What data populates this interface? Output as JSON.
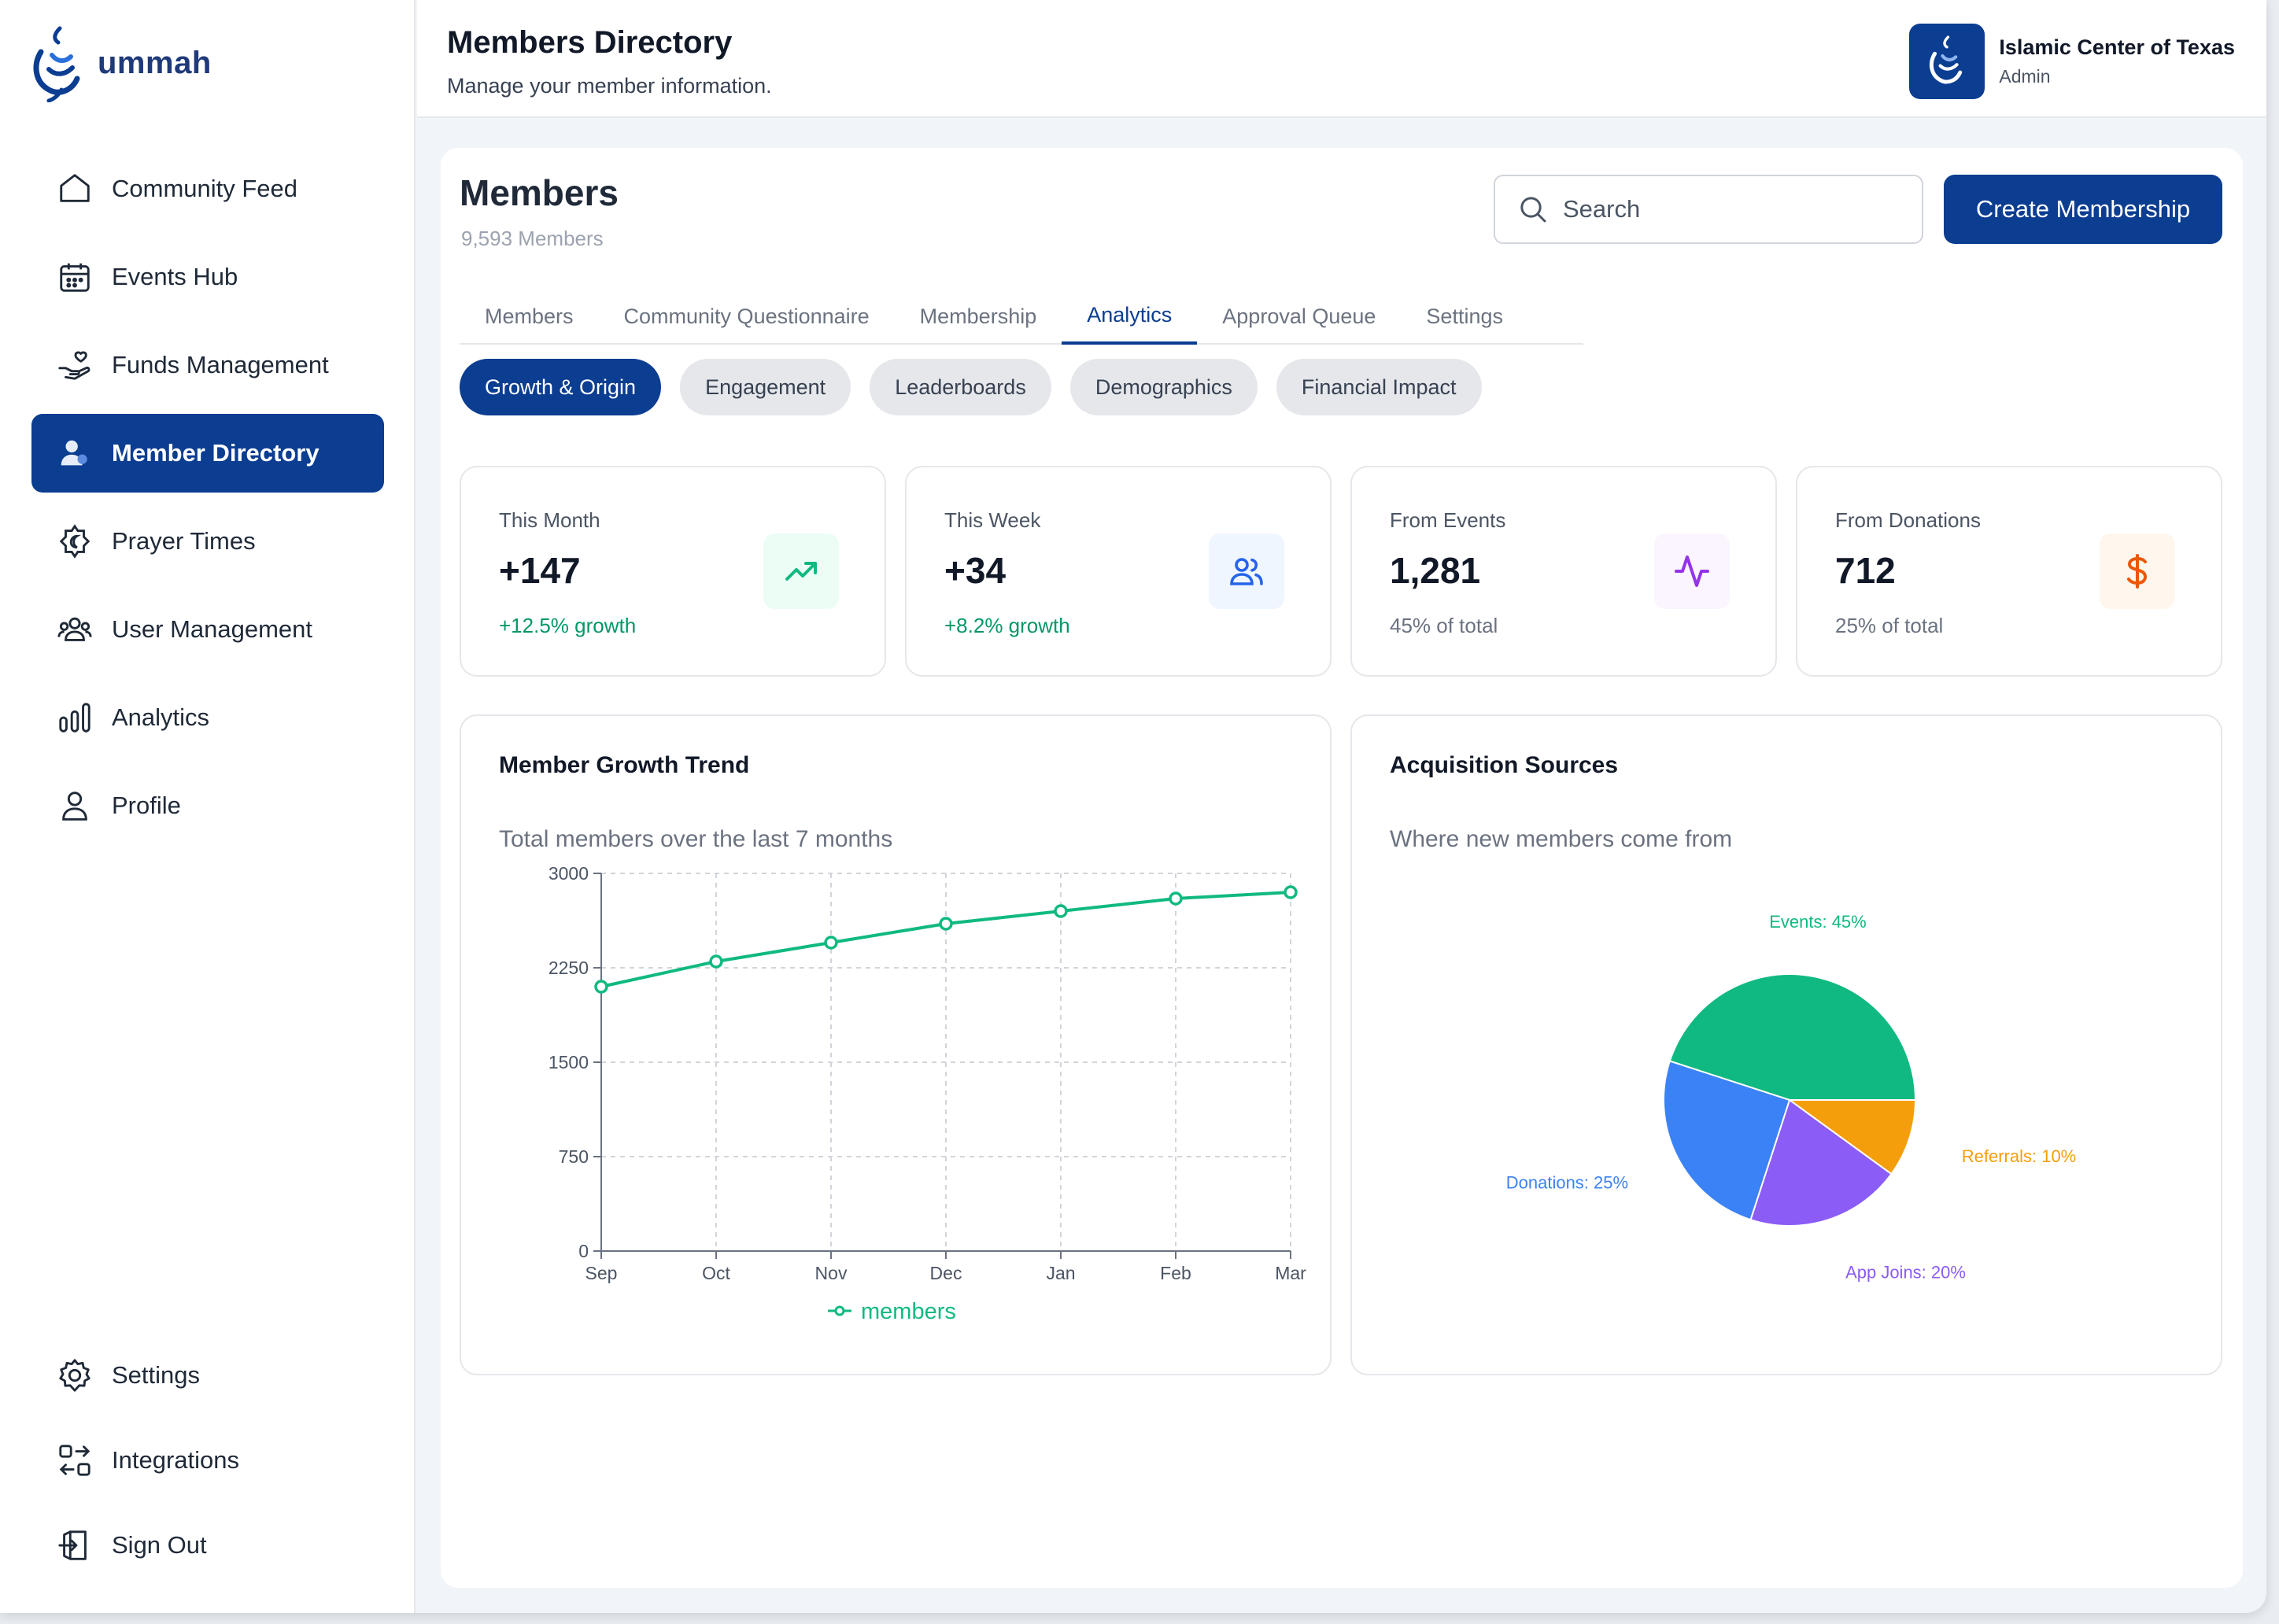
{
  "brand": {
    "name": "ummah"
  },
  "nav": {
    "items": [
      {
        "label": "Community Feed",
        "icon": "home-icon",
        "active": false
      },
      {
        "label": "Events Hub",
        "icon": "calendar-icon",
        "active": false
      },
      {
        "label": "Funds Management",
        "icon": "hand-heart-icon",
        "active": false
      },
      {
        "label": "Member Directory",
        "icon": "user-icon",
        "active": true
      },
      {
        "label": "Prayer Times",
        "icon": "crescent-icon",
        "active": false
      },
      {
        "label": "User Management",
        "icon": "users-icon",
        "active": false
      },
      {
        "label": "Analytics",
        "icon": "bar-chart-icon",
        "active": false
      },
      {
        "label": "Profile",
        "icon": "person-icon",
        "active": false
      }
    ],
    "bottom": [
      {
        "label": "Settings",
        "icon": "gear-icon"
      },
      {
        "label": "Integrations",
        "icon": "integrations-icon"
      },
      {
        "label": "Sign Out",
        "icon": "sign-out-icon"
      }
    ]
  },
  "header": {
    "title": "Members Directory",
    "subtitle": "Manage your member information.",
    "org_name": "Islamic Center of Texas",
    "org_role": "Admin"
  },
  "main": {
    "title": "Members",
    "count": "9,593 Members",
    "search_placeholder": "Search",
    "create_button": "Create Membership",
    "tabs": [
      {
        "label": "Members",
        "active": false
      },
      {
        "label": "Community Questionnaire",
        "active": false
      },
      {
        "label": "Membership",
        "active": false
      },
      {
        "label": "Analytics",
        "active": true
      },
      {
        "label": "Approval Queue",
        "active": false
      },
      {
        "label": "Settings",
        "active": false
      }
    ],
    "subtabs": [
      {
        "label": "Growth & Origin",
        "active": true
      },
      {
        "label": "Engagement",
        "active": false
      },
      {
        "label": "Leaderboards",
        "active": false
      },
      {
        "label": "Demographics",
        "active": false
      },
      {
        "label": "Financial Impact",
        "active": false
      }
    ]
  },
  "stats": [
    {
      "label": "This Month",
      "value": "+147",
      "sub": "+12.5% growth",
      "sub_color": "#059669",
      "icon": "trending-up-icon",
      "icon_color": "#10b981",
      "icon_bg": "#ecfdf5"
    },
    {
      "label": "This Week",
      "value": "+34",
      "sub": "+8.2% growth",
      "sub_color": "#059669",
      "icon": "users-icon",
      "icon_color": "#2563eb",
      "icon_bg": "#eff6ff"
    },
    {
      "label": "From Events",
      "value": "1,281",
      "sub": "45% of total",
      "sub_color": "#6b7280",
      "icon": "activity-icon",
      "icon_color": "#9333ea",
      "icon_bg": "#faf5ff"
    },
    {
      "label": "From Donations",
      "value": "712",
      "sub": "25% of total",
      "sub_color": "#6b7280",
      "icon": "dollar-icon",
      "icon_color": "#ea580c",
      "icon_bg": "#fff7ed"
    }
  ],
  "growth_card": {
    "title": "Member Growth Trend",
    "subtitle": "Total members over the last 7 months"
  },
  "sources_card": {
    "title": "Acquisition Sources",
    "subtitle": "Where new members come from"
  },
  "chart_data": [
    {
      "type": "line",
      "x": [
        "Sep",
        "Oct",
        "Nov",
        "Dec",
        "Jan",
        "Feb",
        "Mar"
      ],
      "series": [
        {
          "name": "members",
          "values": [
            2100,
            2300,
            2450,
            2600,
            2700,
            2800,
            2850
          ],
          "color": "#10b981"
        }
      ],
      "ylim": [
        0,
        3000
      ],
      "yticks": [
        0,
        750,
        1500,
        2250,
        3000
      ],
      "grid": true,
      "legend": "bottom"
    },
    {
      "type": "pie",
      "slices": [
        {
          "label": "Events: 45%",
          "value": 45,
          "color": "#10b981"
        },
        {
          "label": "Referrals: 10%",
          "value": 10,
          "color": "#f59e0b"
        },
        {
          "label": "App Joins: 20%",
          "value": 20,
          "color": "#8b5cf6"
        },
        {
          "label": "Donations: 25%",
          "value": 25,
          "color": "#3b82f6"
        }
      ]
    }
  ]
}
